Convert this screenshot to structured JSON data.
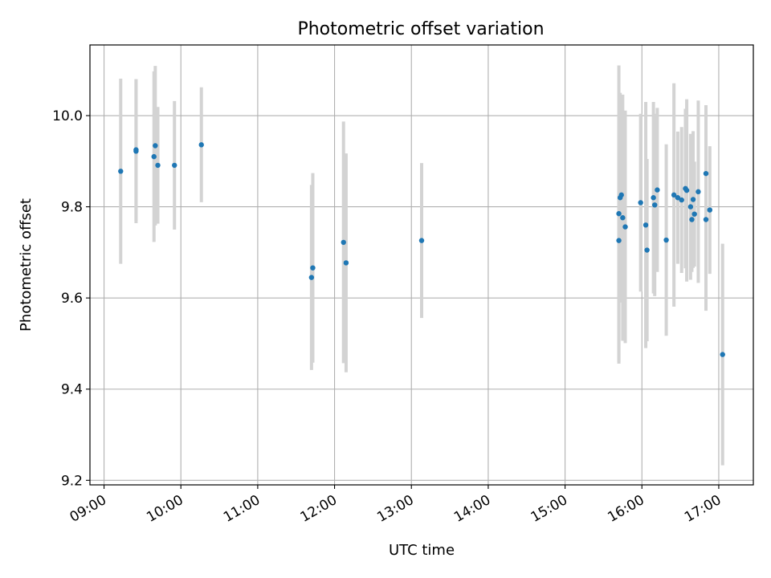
{
  "chart_data": {
    "type": "scatter",
    "title": "Photometric offset variation",
    "xlabel": "UTC time",
    "ylabel": "Photometric offset",
    "x_ticks": [
      "09:00",
      "10:00",
      "11:00",
      "12:00",
      "13:00",
      "14:00",
      "15:00",
      "16:00",
      "17:00"
    ],
    "y_ticks": [
      "9.2",
      "9.4",
      "9.6",
      "9.8",
      "10.0"
    ],
    "x_tick_values": [
      "09:00",
      "10:00",
      "11:00",
      "12:00",
      "13:00",
      "14:00",
      "15:00",
      "16:00",
      "17:00"
    ],
    "y_tick_values": [
      9.2,
      9.4,
      9.6,
      9.8,
      10.0
    ],
    "xlim": [
      "08:49",
      "17:27"
    ],
    "ylim": [
      9.19,
      10.155
    ],
    "grid": true,
    "colors": {
      "point": "#1f77b4",
      "error_bar": "#d3d3d3",
      "grid": "#b0b0b0"
    },
    "points": [
      {
        "x": "09:13",
        "y": 9.878,
        "err": 0.203
      },
      {
        "x": "09:25",
        "y": 9.922,
        "err": 0.158
      },
      {
        "x": "09:25",
        "y": 9.925,
        "err": 0.155
      },
      {
        "x": "09:39",
        "y": 9.91,
        "err": 0.187
      },
      {
        "x": "09:40",
        "y": 9.934,
        "err": 0.175
      },
      {
        "x": "09:42",
        "y": 9.891,
        "err": 0.128
      },
      {
        "x": "09:55",
        "y": 9.891,
        "err": 0.141
      },
      {
        "x": "10:16",
        "y": 9.936,
        "err": 0.126
      },
      {
        "x": "11:42",
        "y": 9.645,
        "err": 0.203
      },
      {
        "x": "11:43",
        "y": 9.666,
        "err": 0.208
      },
      {
        "x": "12:07",
        "y": 9.722,
        "err": 0.265
      },
      {
        "x": "12:09",
        "y": 9.677,
        "err": 0.24
      },
      {
        "x": "13:08",
        "y": 9.726,
        "err": 0.17
      },
      {
        "x": "15:42",
        "y": 9.785,
        "err": 0.325
      },
      {
        "x": "15:42",
        "y": 9.726,
        "err": 0.27
      },
      {
        "x": "15:43",
        "y": 9.82,
        "err": 0.23
      },
      {
        "x": "15:44",
        "y": 9.826,
        "err": 0.17
      },
      {
        "x": "15:45",
        "y": 9.776,
        "err": 0.27
      },
      {
        "x": "15:47",
        "y": 9.756,
        "err": 0.255
      },
      {
        "x": "15:59",
        "y": 9.809,
        "err": 0.195
      },
      {
        "x": "16:03",
        "y": 9.76,
        "err": 0.27
      },
      {
        "x": "16:04",
        "y": 9.705,
        "err": 0.2
      },
      {
        "x": "16:09",
        "y": 9.82,
        "err": 0.21
      },
      {
        "x": "16:10",
        "y": 9.804,
        "err": 0.2
      },
      {
        "x": "16:12",
        "y": 9.837,
        "err": 0.18
      },
      {
        "x": "16:19",
        "y": 9.727,
        "err": 0.21
      },
      {
        "x": "16:25",
        "y": 9.826,
        "err": 0.245
      },
      {
        "x": "16:28",
        "y": 9.82,
        "err": 0.145
      },
      {
        "x": "16:31",
        "y": 9.815,
        "err": 0.16
      },
      {
        "x": "16:34",
        "y": 9.84,
        "err": 0.175
      },
      {
        "x": "16:35",
        "y": 9.836,
        "err": 0.2
      },
      {
        "x": "16:38",
        "y": 9.8,
        "err": 0.16
      },
      {
        "x": "16:39",
        "y": 9.772,
        "err": 0.115
      },
      {
        "x": "16:40",
        "y": 9.816,
        "err": 0.15
      },
      {
        "x": "16:41",
        "y": 9.784,
        "err": 0.115
      },
      {
        "x": "16:44",
        "y": 9.833,
        "err": 0.2
      },
      {
        "x": "16:50",
        "y": 9.873,
        "err": 0.15
      },
      {
        "x": "16:50",
        "y": 9.772,
        "err": 0.2
      },
      {
        "x": "16:53",
        "y": 9.793,
        "err": 0.14
      },
      {
        "x": "17:03",
        "y": 9.476,
        "err": 0.243
      }
    ]
  }
}
